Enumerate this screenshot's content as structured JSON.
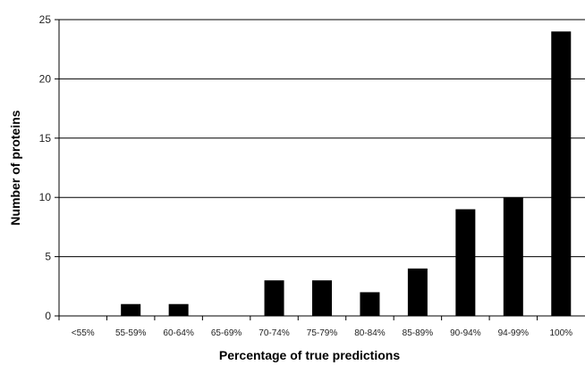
{
  "chart_data": {
    "type": "bar",
    "title": "",
    "xlabel": "Percentage of true predictions",
    "ylabel": "Number of proteins",
    "categories": [
      "<55%",
      "55-59%",
      "60-64%",
      "65-69%",
      "70-74%",
      "75-79%",
      "80-84%",
      "85-89%",
      "90-94%",
      "94-99%",
      "100%"
    ],
    "values": [
      0,
      1,
      1,
      0,
      3,
      3,
      2,
      4,
      9,
      10,
      24
    ],
    "ylim": [
      0,
      25
    ],
    "yticks": [
      0,
      5,
      10,
      15,
      20,
      25
    ],
    "grid": true,
    "legend": "none",
    "bar_color": "#000000",
    "grid_color": "#000000"
  }
}
